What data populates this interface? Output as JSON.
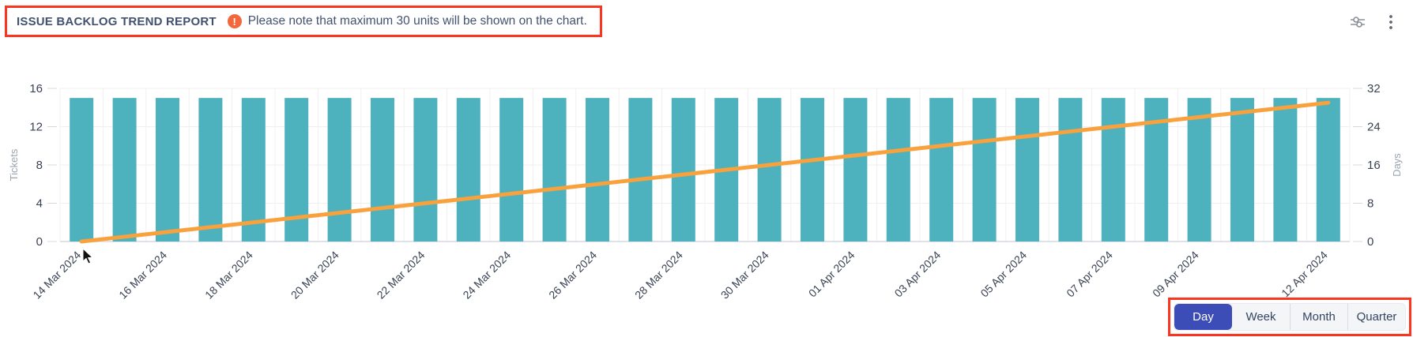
{
  "header": {
    "title": "ISSUE BACKLOG TREND REPORT",
    "warning_glyph": "!",
    "note": "Please note that maximum 30 units will be shown on the chart."
  },
  "colors": {
    "bar": "#4db2be",
    "line": "#f9a13c",
    "annotation_red": "#fb351f",
    "active_button": "#3d4db7",
    "text_dark": "#42526e",
    "tick_text": "#3a4354",
    "axis_title": "#9aa5b1",
    "gridline": "#efefef",
    "baseline": "#dfe3e8",
    "icon_gray": "#6b7280"
  },
  "chart_data": {
    "type": "bar",
    "title": "",
    "x": [
      "14 Mar 2024",
      "15 Mar 2024",
      "16 Mar 2024",
      "17 Mar 2024",
      "18 Mar 2024",
      "19 Mar 2024",
      "20 Mar 2024",
      "21 Mar 2024",
      "22 Mar 2024",
      "23 Mar 2024",
      "24 Mar 2024",
      "25 Mar 2024",
      "26 Mar 2024",
      "27 Mar 2024",
      "28 Mar 2024",
      "29 Mar 2024",
      "30 Mar 2024",
      "31 Mar 2024",
      "01 Apr 2024",
      "02 Apr 2024",
      "03 Apr 2024",
      "04 Apr 2024",
      "05 Apr 2024",
      "06 Apr 2024",
      "07 Apr 2024",
      "08 Apr 2024",
      "09 Apr 2024",
      "10 Apr 2024",
      "11 Apr 2024",
      "12 Apr 2024"
    ],
    "x_label_indices": [
      0,
      2,
      4,
      6,
      8,
      10,
      12,
      14,
      16,
      18,
      20,
      22,
      24,
      26,
      29
    ],
    "series": [
      {
        "name": "Tickets",
        "type": "bar",
        "axis": "left",
        "color": "#4db2be",
        "values": [
          15,
          15,
          15,
          15,
          15,
          15,
          15,
          15,
          15,
          15,
          15,
          15,
          15,
          15,
          15,
          15,
          15,
          15,
          15,
          15,
          15,
          15,
          15,
          15,
          15,
          15,
          15,
          15,
          15,
          15
        ]
      },
      {
        "name": "Days",
        "type": "line",
        "axis": "right",
        "color": "#f9a13c",
        "values": [
          0,
          1,
          2,
          3,
          4,
          5,
          6,
          7,
          8,
          9,
          10,
          11,
          12,
          13,
          14,
          15,
          16,
          17,
          18,
          19,
          20,
          21,
          22,
          23,
          24,
          25,
          26,
          27,
          28,
          29
        ]
      }
    ],
    "left_axis": {
      "label": "Tickets",
      "ticks": [
        0,
        4,
        8,
        12,
        16
      ],
      "min": 0,
      "max": 16
    },
    "right_axis": {
      "label": "Days",
      "ticks": [
        0,
        8,
        16,
        24,
        32
      ],
      "min": 0,
      "max": 32
    },
    "grid": true,
    "legend": "none"
  },
  "footer": {
    "period_options": [
      {
        "label": "Day",
        "active": true
      },
      {
        "label": "Week",
        "active": false
      },
      {
        "label": "Month",
        "active": false
      },
      {
        "label": "Quarter",
        "active": false
      }
    ]
  }
}
